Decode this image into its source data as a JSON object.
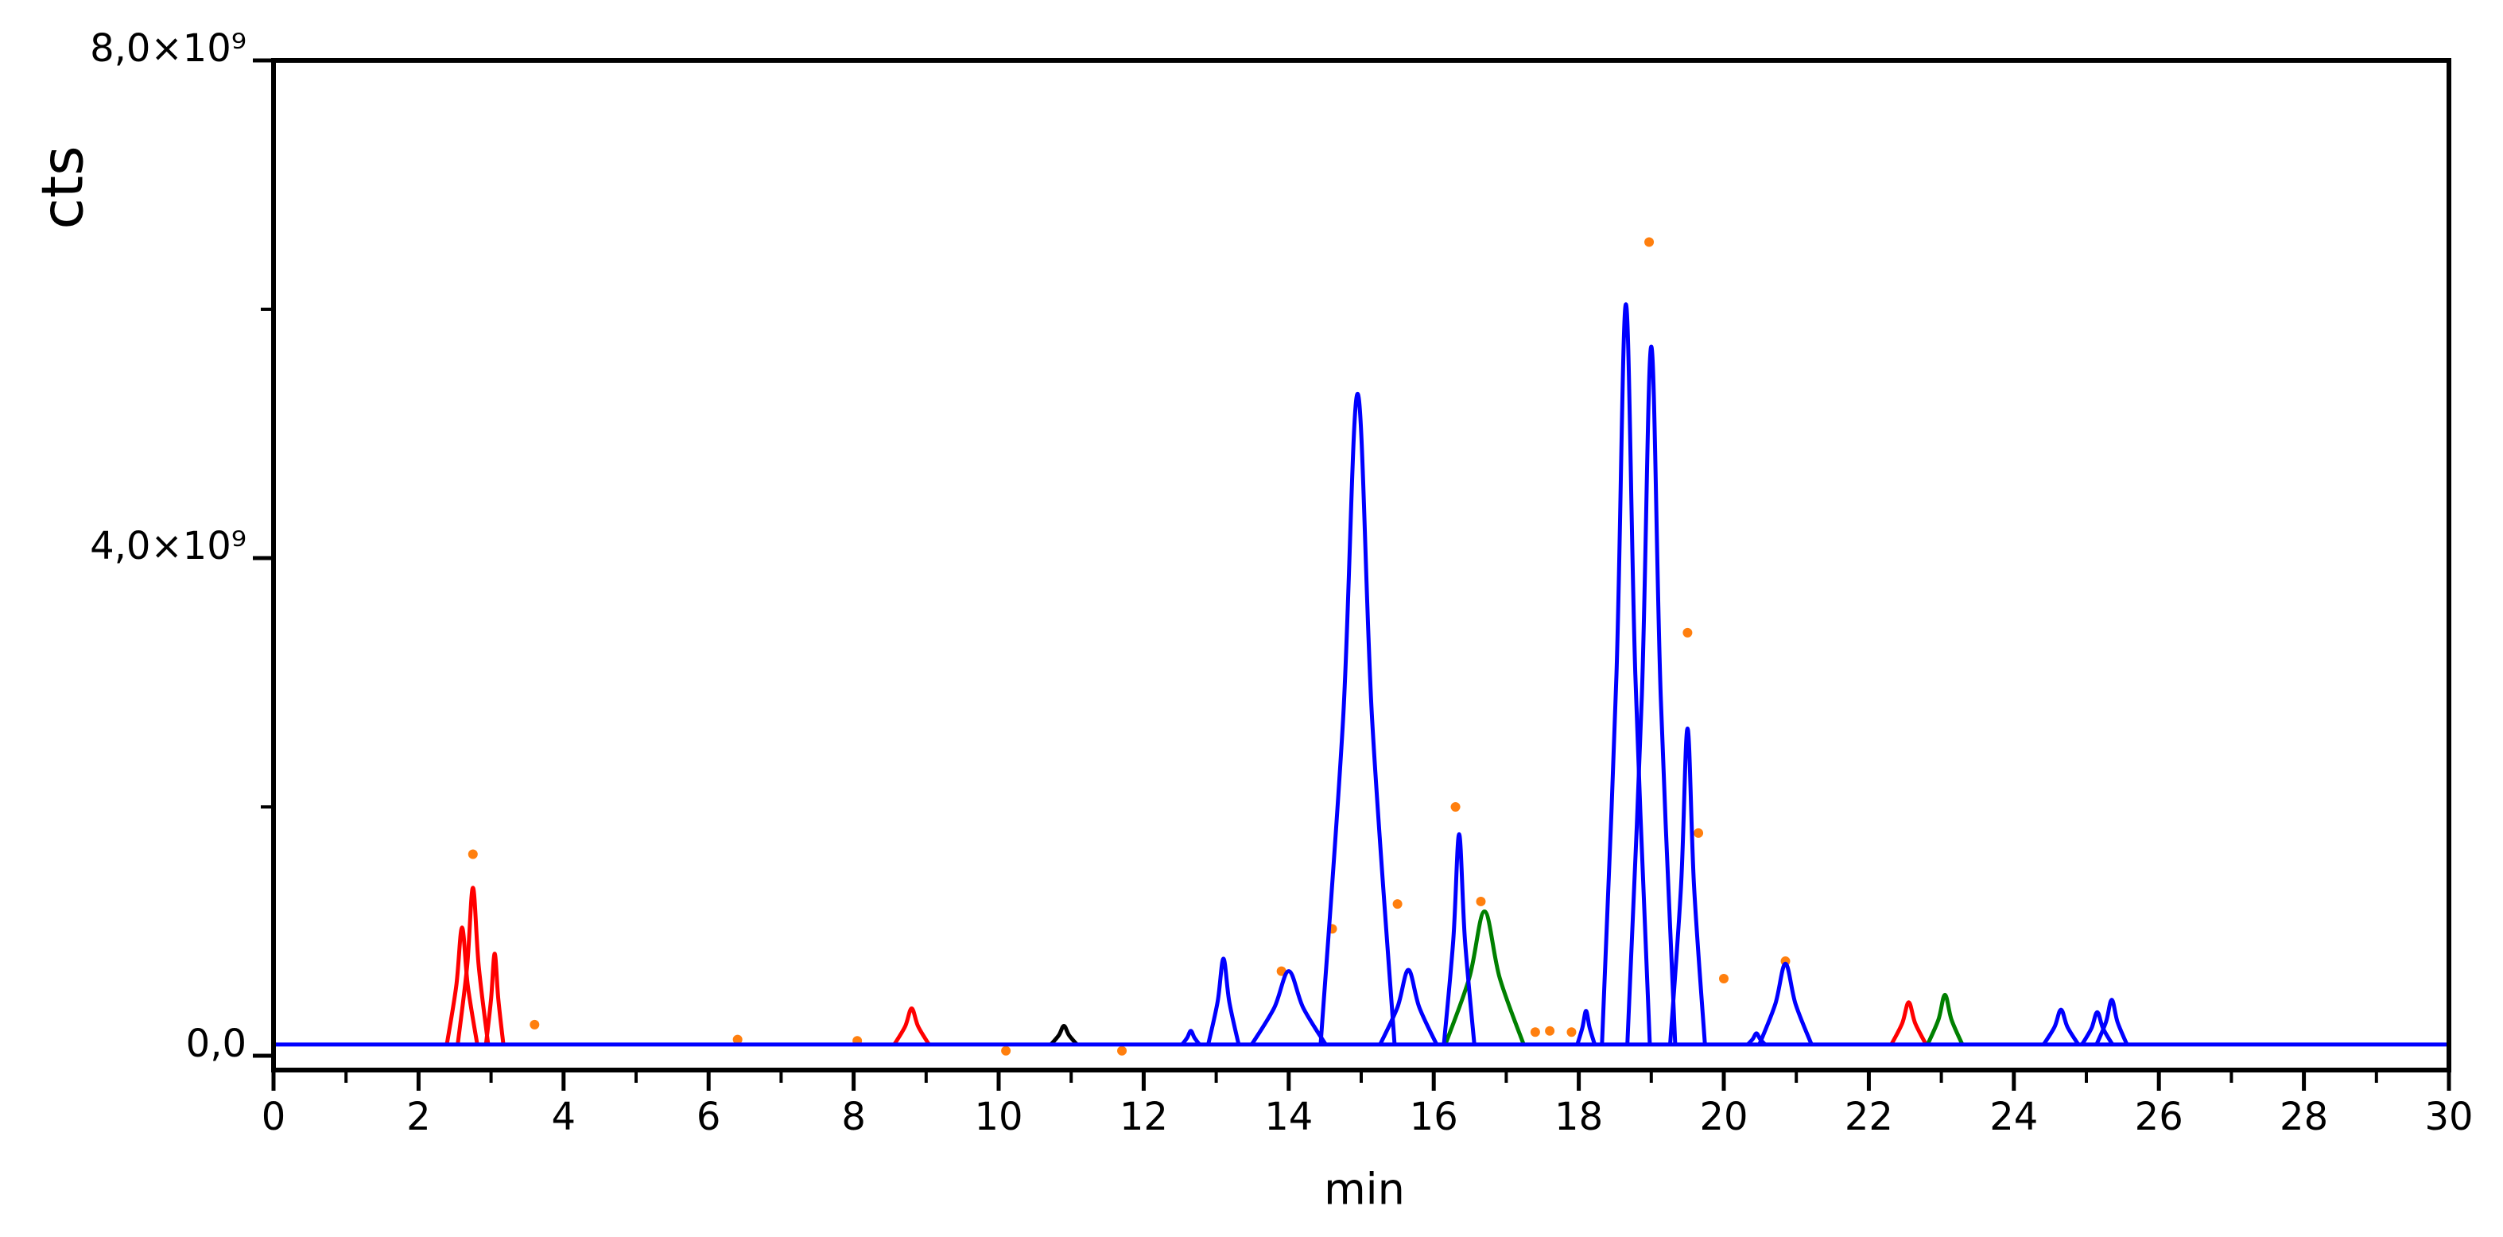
{
  "chart_data": {
    "type": "line",
    "xlabel": "min",
    "ylabel": "cts",
    "xlim": [
      0,
      30
    ],
    "ylim": [
      -115000000.0,
      8000000000.0
    ],
    "xticks": [
      0,
      2,
      4,
      6,
      8,
      10,
      12,
      14,
      16,
      18,
      20,
      22,
      24,
      26,
      28,
      30
    ],
    "xminorticks": [
      1,
      3,
      5,
      7,
      9,
      11,
      13,
      15,
      17,
      19,
      21,
      23,
      25,
      27,
      29
    ],
    "yticks": [
      {
        "value": 0,
        "label": "0,0"
      },
      {
        "value": 4000000000.0,
        "label": "4,0×10⁹"
      },
      {
        "value": 8000000000.0,
        "label": "8,0×10⁹"
      }
    ],
    "yminorticks": [
      2000000000.0,
      6000000000.0
    ],
    "series": [
      {
        "color": "#ff0000",
        "x": [
          2.39,
          2.52,
          2.6,
          2.68,
          2.81
        ],
        "values": [
          90000000.0,
          560000000.0,
          1030000000.0,
          560000000.0,
          90000000.0
        ]
      },
      {
        "color": "#ff0000",
        "x": [
          2.54,
          2.67,
          2.75,
          2.83,
          2.96
        ],
        "values": [
          90000000.0,
          720000000.0,
          1350000000.0,
          720000000.0,
          90000000.0
        ]
      },
      {
        "color": "#ff0000",
        "x": [
          2.93,
          3.0,
          3.05,
          3.1,
          3.17
        ],
        "values": [
          90000000.0,
          455000000.0,
          820000000.0,
          455000000.0,
          90000000.0
        ]
      },
      {
        "color": "#ff0000",
        "x": [
          8.56,
          8.71,
          8.8,
          8.89,
          9.04
        ],
        "values": [
          90000000.0,
          235000000.0,
          380000000.0,
          235000000.0,
          90000000.0
        ]
      },
      {
        "color": "#ff0000",
        "x": [
          22.31,
          22.46,
          22.55,
          22.64,
          22.79
        ],
        "values": [
          90000000.0,
          260000000.0,
          430000000.0,
          260000000.0,
          90000000.0
        ]
      },
      {
        "color": "#000000",
        "x": [
          10.72,
          10.83,
          10.9,
          10.97,
          11.08
        ],
        "values": [
          90000000.0,
          165000000.0,
          240000000.0,
          165000000.0,
          90000000.0
        ]
      },
      {
        "color": "#008000",
        "x": [
          16.16,
          16.49,
          16.7,
          16.91,
          17.24
        ],
        "values": [
          90000000.0,
          625000000.0,
          1160000000.0,
          625000000.0,
          90000000.0
        ]
      },
      {
        "color": "#008000",
        "x": [
          22.81,
          22.96,
          23.05,
          23.14,
          23.29
        ],
        "values": [
          90000000.0,
          290000000.0,
          490000000.0,
          290000000.0,
          90000000.0
        ]
      },
      {
        "color": "#0000ff",
        "x": [
          12.53,
          12.6,
          12.65,
          12.7,
          12.77
        ],
        "values": [
          90000000.0,
          145000000.0,
          200000000.0,
          145000000.0,
          90000000.0
        ]
      },
      {
        "color": "#0000ff",
        "x": [
          12.89,
          13.02,
          13.1,
          13.18,
          13.31
        ],
        "values": [
          90000000.0,
          435000000.0,
          780000000.0,
          435000000.0,
          90000000.0
        ]
      },
      {
        "color": "#0000ff",
        "x": [
          13.49,
          13.8,
          14.0,
          14.2,
          14.51
        ],
        "values": [
          90000000.0,
          385000000.0,
          680000000.0,
          385000000.0,
          90000000.0
        ]
      },
      {
        "color": "#0000ff",
        "x": [
          14.44,
          14.75,
          14.95,
          15.15,
          15.46
        ],
        "values": [
          90000000.0,
          2705000000.0,
          5320000000.0,
          2705000000.0,
          90000000.0
        ]
      },
      {
        "color": "#0000ff",
        "x": [
          15.26,
          15.5,
          15.65,
          15.8,
          16.04
        ],
        "values": [
          90000000.0,
          390000000.0,
          690000000.0,
          390000000.0,
          90000000.0
        ]
      },
      {
        "color": "#0000ff",
        "x": [
          16.14,
          16.27,
          16.35,
          16.43,
          16.56
        ],
        "values": [
          90000000.0,
          935000000.0,
          1780000000.0,
          935000000.0,
          90000000.0
        ]
      },
      {
        "color": "#0000ff",
        "x": [
          17.98,
          18.05,
          18.1,
          18.15,
          18.22
        ],
        "values": [
          90000000.0,
          225000000.0,
          360000000.0,
          225000000.0,
          90000000.0
        ]
      },
      {
        "color": "#0000ff",
        "x": [
          18.32,
          18.52,
          18.65,
          18.78,
          18.98
        ],
        "values": [
          90000000.0,
          3065000000.0,
          6040000000.0,
          3065000000.0,
          90000000.0
        ]
      },
      {
        "color": "#0000ff",
        "x": [
          18.67,
          18.87,
          19.0,
          19.13,
          19.33
        ],
        "values": [
          90000000.0,
          2895000000.0,
          5700000000.0,
          2895000000.0,
          90000000.0
        ]
      },
      {
        "color": "#0000ff",
        "x": [
          19.26,
          19.41,
          19.5,
          19.59,
          19.74
        ],
        "values": [
          90000000.0,
          1360000000.0,
          2630000000.0,
          1360000000.0,
          90000000.0
        ]
      },
      {
        "color": "#0000ff",
        "x": [
          20.33,
          20.4,
          20.45,
          20.5,
          20.57
        ],
        "values": [
          90000000.0,
          135000000.0,
          180000000.0,
          135000000.0,
          90000000.0
        ]
      },
      {
        "color": "#0000ff",
        "x": [
          20.49,
          20.71,
          20.85,
          20.99,
          21.21
        ],
        "values": [
          90000000.0,
          415000000.0,
          740000000.0,
          415000000.0,
          90000000.0
        ]
      },
      {
        "color": "#0000ff",
        "x": [
          24.41,
          24.56,
          24.65,
          24.74,
          24.89
        ],
        "values": [
          90000000.0,
          230000000.0,
          370000000.0,
          230000000.0,
          90000000.0
        ]
      },
      {
        "color": "#0000ff",
        "x": [
          24.94,
          25.07,
          25.15,
          25.23,
          25.36
        ],
        "values": [
          90000000.0,
          220000000.0,
          350000000.0,
          220000000.0,
          90000000.0
        ]
      },
      {
        "color": "#0000ff",
        "x": [
          25.14,
          25.27,
          25.35,
          25.43,
          25.56
        ],
        "values": [
          90000000.0,
          270000000.0,
          450000000.0,
          270000000.0,
          90000000.0
        ]
      },
      {
        "color": "#0000ff",
        "x": [
          0,
          30
        ],
        "values": [
          90000000.0,
          90000000.0
        ]
      }
    ],
    "scatter": {
      "color": "#ff7f0e",
      "x": [
        2.75,
        3.6,
        6.4,
        8.05,
        10.1,
        11.7,
        13.9,
        14.6,
        15.5,
        16.3,
        16.65,
        17.4,
        17.6,
        17.9,
        18.97,
        19.5,
        19.65,
        20.0,
        20.85
      ],
      "values": [
        1620000000.0,
        250000000.0,
        130000000.0,
        120000000.0,
        40000000.0,
        40000000.0,
        680000000.0,
        1020000000.0,
        1220000000.0,
        2000000000.0,
        1240000000.0,
        190000000.0,
        200000000.0,
        190000000.0,
        6540000000.0,
        3400000000.0,
        1790000000.0,
        620000000.0,
        760000000.0
      ]
    }
  }
}
